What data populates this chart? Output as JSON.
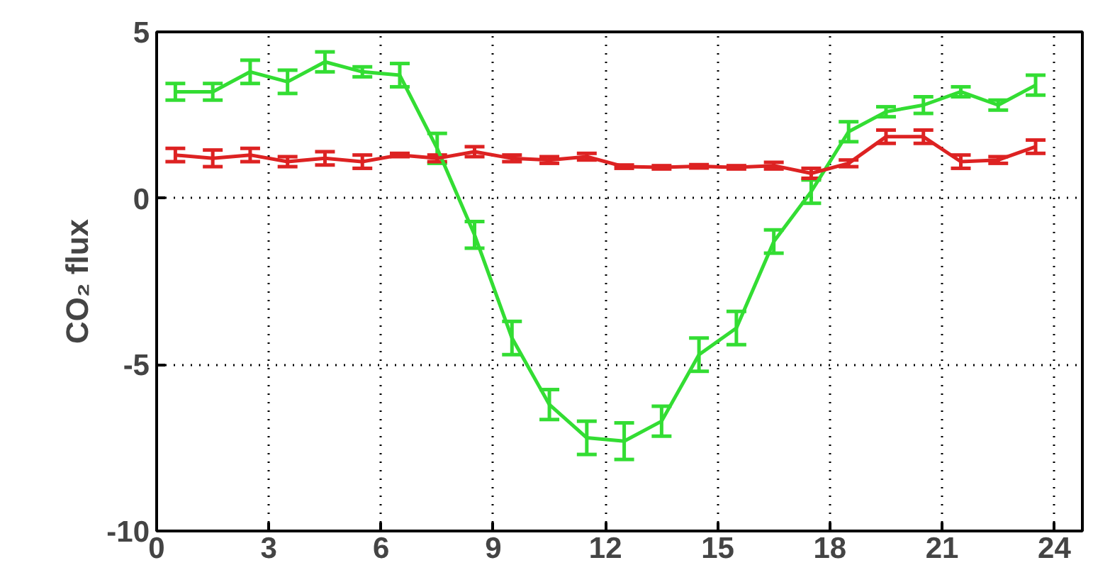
{
  "chart_data": {
    "type": "line",
    "ylabel": "CO₂ flux",
    "x": [
      0.5,
      1.5,
      2.5,
      3.5,
      4.5,
      5.5,
      6.5,
      7.5,
      8.5,
      9.5,
      10.5,
      11.5,
      12.5,
      13.5,
      14.5,
      15.5,
      16.5,
      17.5,
      18.5,
      19.5,
      20.5,
      21.5,
      22.5,
      23.5
    ],
    "series": [
      {
        "color": "#33dd33",
        "values": [
          3.2,
          3.2,
          3.8,
          3.5,
          4.1,
          3.8,
          3.7,
          1.5,
          -1.1,
          -4.2,
          -6.2,
          -7.2,
          -7.3,
          -6.7,
          -4.7,
          -3.9,
          -1.3,
          0.2,
          2.0,
          2.6,
          2.8,
          3.2,
          2.8,
          3.4
        ],
        "errors": [
          0.25,
          0.25,
          0.35,
          0.35,
          0.3,
          0.15,
          0.35,
          0.45,
          0.4,
          0.5,
          0.45,
          0.5,
          0.55,
          0.45,
          0.5,
          0.5,
          0.35,
          0.35,
          0.3,
          0.15,
          0.25,
          0.15,
          0.15,
          0.3
        ]
      },
      {
        "color": "#dd2222",
        "values": [
          1.3,
          1.2,
          1.3,
          1.1,
          1.2,
          1.1,
          1.3,
          1.2,
          1.4,
          1.2,
          1.15,
          1.25,
          0.95,
          0.93,
          0.96,
          0.93,
          0.98,
          0.75,
          1.05,
          1.85,
          1.85,
          1.1,
          1.15,
          1.55
        ],
        "errors": [
          0.2,
          0.25,
          0.2,
          0.15,
          0.2,
          0.2,
          0.05,
          0.1,
          0.15,
          0.1,
          0.1,
          0.1,
          0.05,
          0.05,
          0.05,
          0.05,
          0.1,
          0.15,
          0.1,
          0.2,
          0.2,
          0.2,
          0.1,
          0.2
        ]
      }
    ],
    "xlim": [
      0,
      24.75
    ],
    "ylim": [
      -10,
      5
    ],
    "xticks": [
      0,
      3,
      6,
      9,
      12,
      15,
      18,
      21,
      24
    ],
    "yticks": [
      -10,
      -5,
      0,
      5
    ],
    "grid": true,
    "marker": "none",
    "line_style": "solid"
  }
}
